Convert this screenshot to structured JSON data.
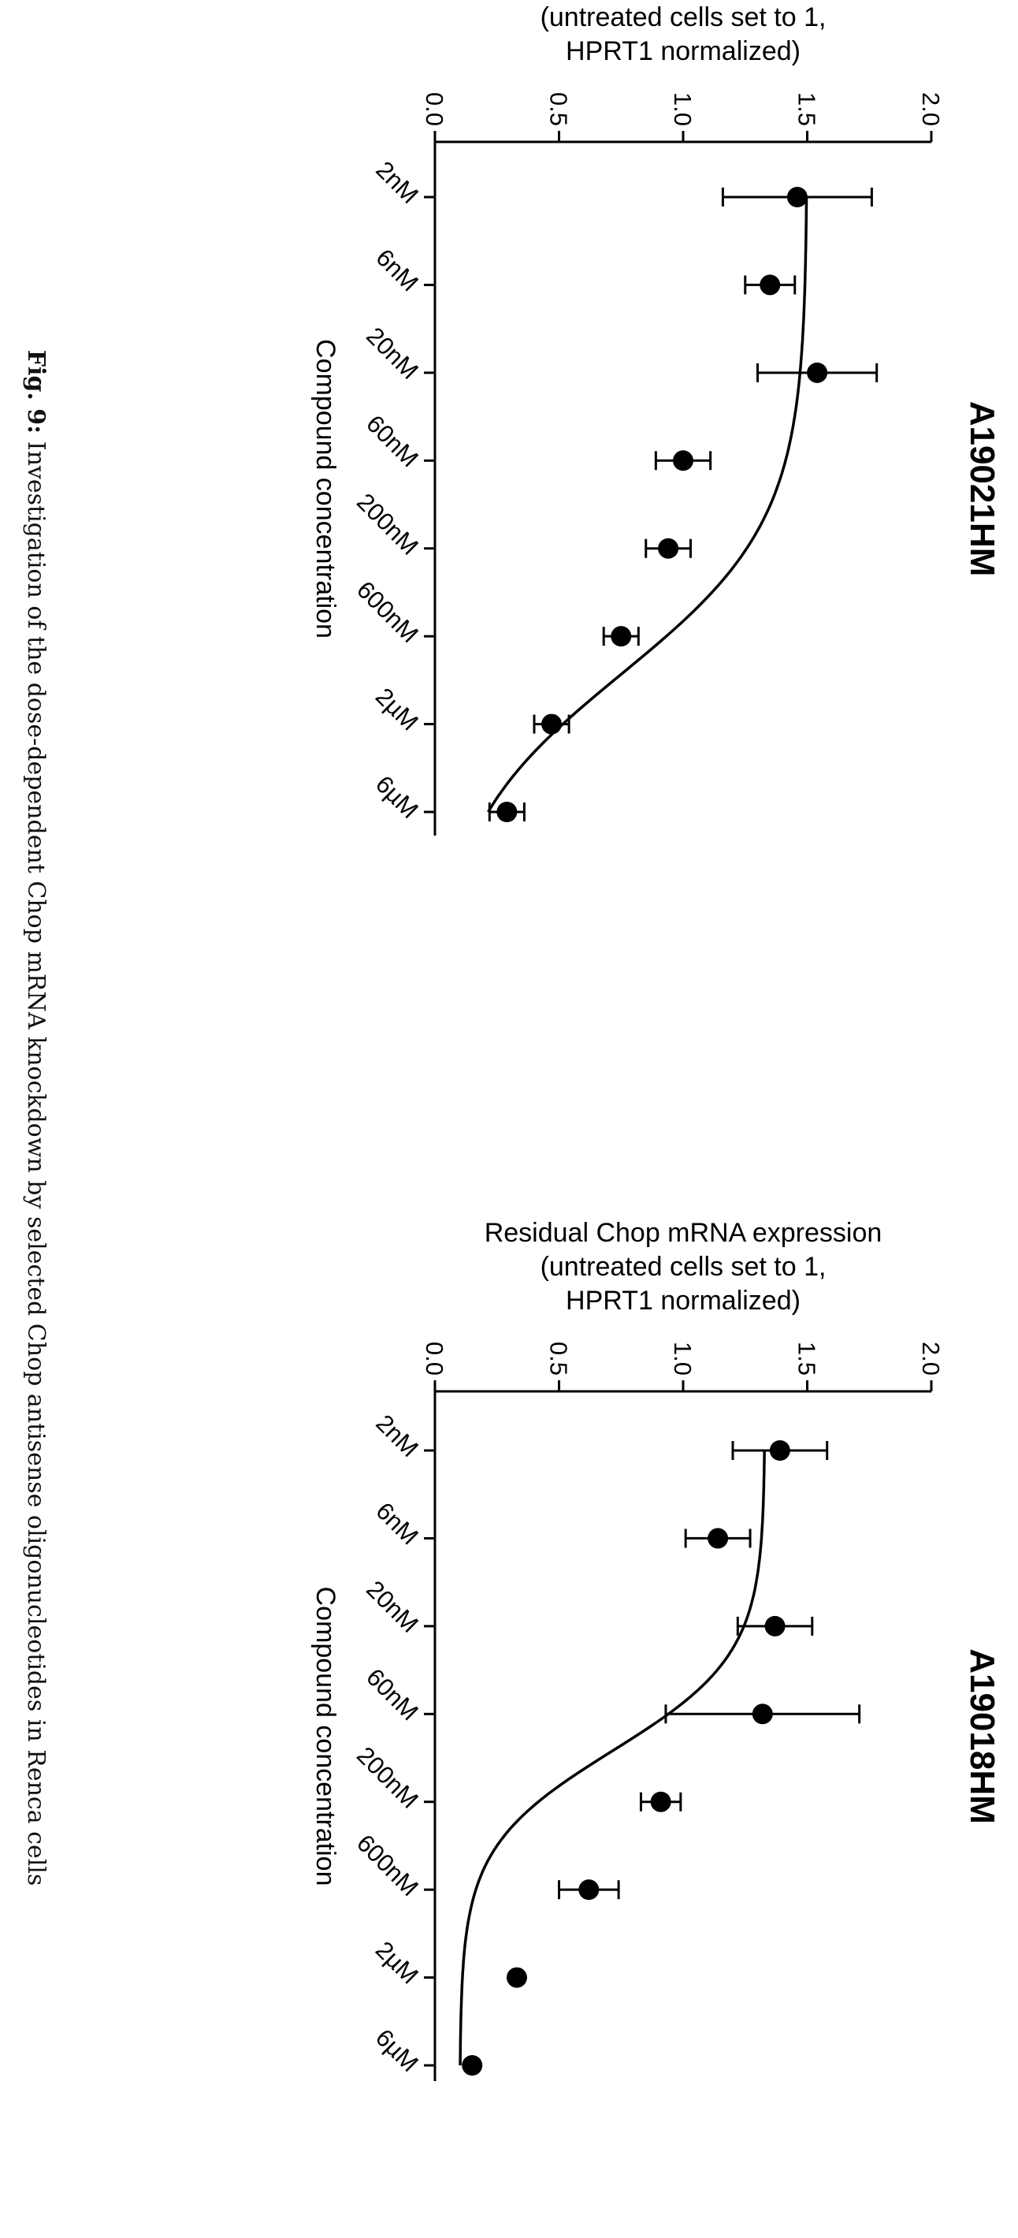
{
  "caption": {
    "label": "Fig. 9:",
    "text": " Investigation of the dose-dependent Chop mRNA knockdown by selected Chop antisense oligonucleotides in Renca cells"
  },
  "chart_data": [
    {
      "type": "scatter",
      "title": "A19018HM",
      "xlabel": "Compound concentration",
      "ylabel_lines": [
        "Residual Chop mRNA expression",
        "(untreated cells set to 1,",
        "HPRT1 normalized)"
      ],
      "categories": [
        "2nM",
        "6nM",
        "20nM",
        "60nM",
        "200nM",
        "600nM",
        "2µM",
        "6µM"
      ],
      "y_ticks": [
        "0.0",
        "0.5",
        "1.0",
        "1.5",
        "2.0"
      ],
      "ylim": [
        0,
        2
      ],
      "values": [
        1.39,
        1.14,
        1.37,
        1.32,
        0.91,
        0.62,
        0.33,
        0.15
      ],
      "errors": [
        0.19,
        0.13,
        0.15,
        0.39,
        0.08,
        0.12,
        0,
        0
      ],
      "fit": "sigmoidal",
      "fit_params": {
        "top": 1.33,
        "bottom": 0.1,
        "log_ec50": 5.0,
        "hill": 1.6
      }
    },
    {
      "type": "scatter",
      "title": "A19021HM",
      "xlabel": "Compound concentration",
      "ylabel_lines": [
        "Residual Chop mRNA expression",
        "(untreated cells set to 1,",
        "HPRT1 normalized)"
      ],
      "categories": [
        "2nM",
        "6nM",
        "20nM",
        "60nM",
        "200nM",
        "600nM",
        "2µM",
        "6µM"
      ],
      "y_ticks": [
        "0.0",
        "0.5",
        "1.0",
        "1.5",
        "2.0"
      ],
      "ylim": [
        0,
        2
      ],
      "values": [
        1.46,
        1.35,
        1.54,
        1.0,
        0.94,
        0.75,
        0.47,
        0.29
      ],
      "errors": [
        0.3,
        0.1,
        0.24,
        0.11,
        0.09,
        0.07,
        0.07,
        0.07
      ],
      "fit": "sigmoidal",
      "fit_params": {
        "top": 1.5,
        "bottom": 0.0,
        "log_ec50": 6.0,
        "hill": 1.0
      }
    }
  ]
}
